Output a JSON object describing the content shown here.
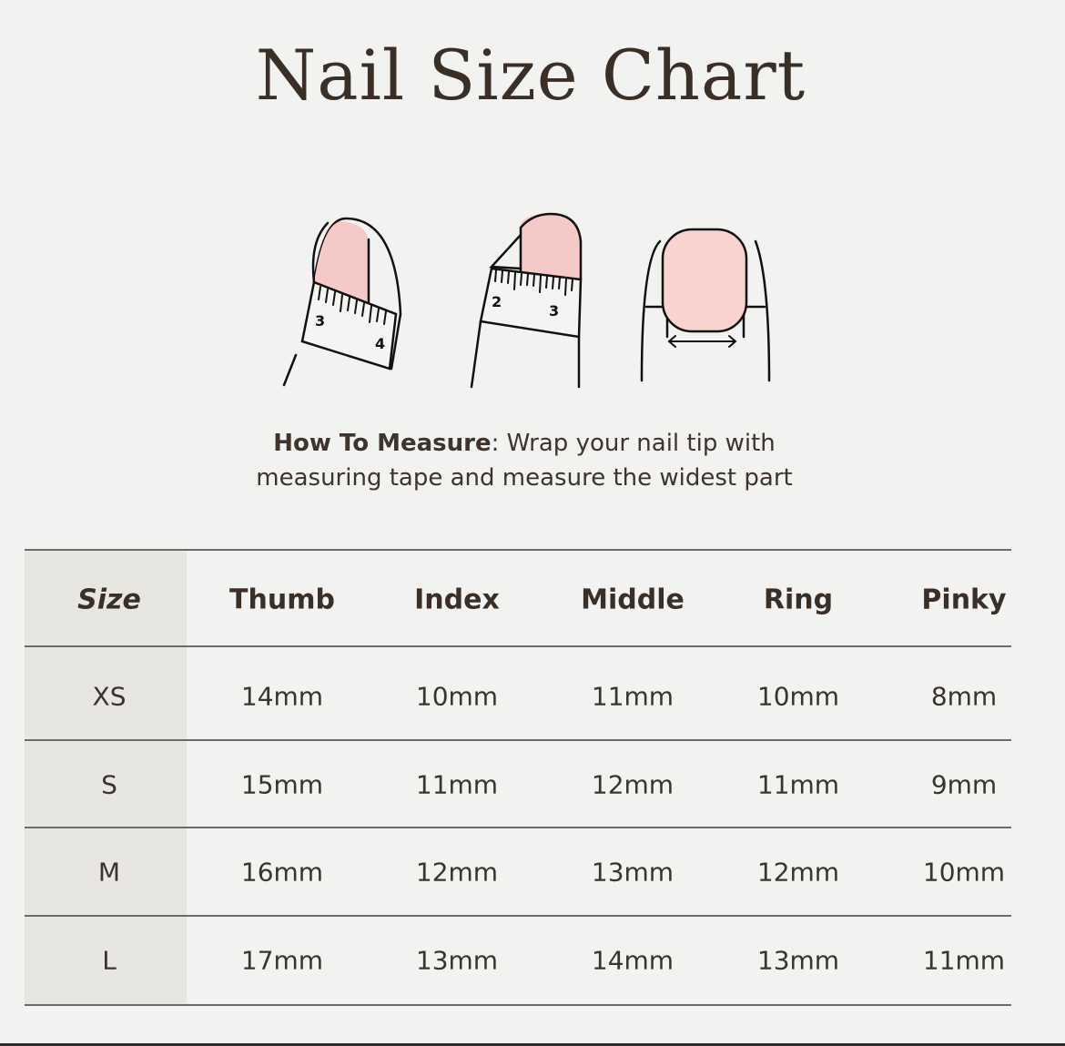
{
  "title": "Nail Size Chart",
  "how_to": {
    "label": "How To Measure",
    "text": ": Wrap your nail tip with",
    "text2": "measuring tape and measure the widest part"
  },
  "illustration": {
    "tape_numbers": [
      "3",
      "4",
      "2",
      "3"
    ],
    "nail_color": "#f6c9c9"
  },
  "table": {
    "headers": [
      "Size",
      "Thumb",
      "Index",
      "Middle",
      "Ring",
      "Pinky"
    ],
    "rows": [
      [
        "XS",
        "14mm",
        "10mm",
        "11mm",
        "10mm",
        "8mm"
      ],
      [
        "S",
        "15mm",
        "11mm",
        "12mm",
        "11mm",
        "9mm"
      ],
      [
        "M",
        "16mm",
        "12mm",
        "13mm",
        "12mm",
        "10mm"
      ],
      [
        "L",
        "17mm",
        "13mm",
        "14mm",
        "13mm",
        "11mm"
      ]
    ]
  },
  "colors": {
    "background": "#f2f2f1",
    "size_column": "#e7e6e1",
    "text": "#3a2f27"
  }
}
